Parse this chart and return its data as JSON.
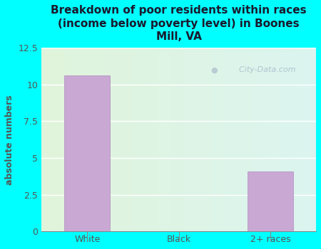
{
  "title": "Breakdown of poor residents within races\n(income below poverty level) in Boones\nMill, VA",
  "categories": [
    "White",
    "Black",
    "2+ races"
  ],
  "values": [
    10.6,
    0,
    4.1
  ],
  "bar_color": "#c9a8d4",
  "bar_edgecolor": "#b08bbf",
  "ylabel": "absolute numbers",
  "ylim": [
    0,
    12.5
  ],
  "yticks": [
    0,
    2.5,
    5.0,
    7.5,
    10.0,
    12.5
  ],
  "fig_bg": "#00ffff",
  "plot_bg_topleft": [
    0.88,
    0.96,
    0.86
  ],
  "plot_bg_bottomright": [
    0.86,
    0.96,
    0.94
  ],
  "title_color": "#1a1a2e",
  "title_fontsize": 11,
  "axis_color": "#555555",
  "tick_color": "#555555",
  "watermark": "  City-Data.com",
  "watermark_color": "#aabbcc",
  "grid_color": "#ffffff"
}
